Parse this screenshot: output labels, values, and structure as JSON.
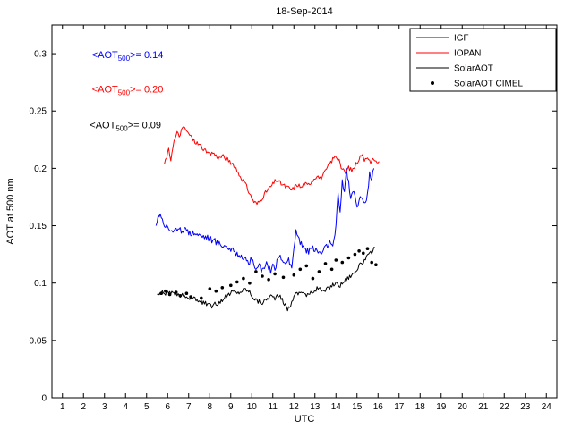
{
  "figure": {
    "title": "18-Sep-2014",
    "xlabel": "UTC",
    "ylabel": "AOT at 500 nm"
  },
  "chart_data": {
    "type": "line",
    "title": "18-Sep-2014",
    "xlabel": "UTC",
    "ylabel": "AOT at 500 nm",
    "xlim": [
      0.5,
      24.5
    ],
    "ylim": [
      0,
      0.325
    ],
    "grid": false,
    "xticks": [
      1,
      2,
      3,
      4,
      5,
      6,
      7,
      8,
      9,
      10,
      11,
      12,
      13,
      14,
      15,
      16,
      17,
      18,
      19,
      20,
      21,
      22,
      23,
      24
    ],
    "yticks": [
      {
        "v": 0,
        "label": "0"
      },
      {
        "v": 0.05,
        "label": "0.05"
      },
      {
        "v": 0.1,
        "label": "0.1"
      },
      {
        "v": 0.15,
        "label": "0.15"
      },
      {
        "v": 0.2,
        "label": "0.2"
      },
      {
        "v": 0.25,
        "label": "0.25"
      },
      {
        "v": 0.3,
        "label": "0.3"
      }
    ],
    "legend": {
      "position": "top-right-inside",
      "entries": [
        {
          "id": "igf",
          "label": "IGF",
          "color": "#0000ff",
          "marker": "line"
        },
        {
          "id": "iopan",
          "label": "IOPAN",
          "color": "#ff0000",
          "marker": "line"
        },
        {
          "id": "solaraot",
          "label": "SolarAOT",
          "color": "#000000",
          "marker": "line"
        },
        {
          "id": "solaraot-cimel",
          "label": "SolarAOT CIMEL",
          "color": "#000000",
          "marker": "dot"
        }
      ]
    },
    "annotations": [
      {
        "id": "igf-mean",
        "x": 2.4,
        "y": 0.296,
        "color": "#0000ff",
        "pre": "<AOT",
        "sub": "500",
        "post": ">= 0.14"
      },
      {
        "id": "iopan-mean",
        "x": 2.4,
        "y": 0.266,
        "color": "#ff0000",
        "pre": "<AOT",
        "sub": "500",
        "post": ">= 0.20"
      },
      {
        "id": "solaraot-mean",
        "x": 2.3,
        "y": 0.235,
        "color": "#000000",
        "pre": "<AOT",
        "sub": "500",
        "post": ">= 0.09"
      }
    ],
    "series": [
      {
        "id": "igf",
        "name": "IGF",
        "color": "#0000ff",
        "style": "line",
        "jitter": 0.003,
        "seed": 7,
        "points": [
          [
            5.45,
            0.15
          ],
          [
            5.55,
            0.158
          ],
          [
            5.65,
            0.162
          ],
          [
            5.75,
            0.155
          ],
          [
            5.9,
            0.15
          ],
          [
            6.1,
            0.147
          ],
          [
            6.3,
            0.146
          ],
          [
            6.5,
            0.145
          ],
          [
            6.7,
            0.146
          ],
          [
            6.9,
            0.145
          ],
          [
            7.1,
            0.144
          ],
          [
            7.3,
            0.144
          ],
          [
            7.5,
            0.142
          ],
          [
            7.7,
            0.141
          ],
          [
            7.9,
            0.14
          ],
          [
            8.1,
            0.138
          ],
          [
            8.3,
            0.136
          ],
          [
            8.5,
            0.134
          ],
          [
            8.7,
            0.133
          ],
          [
            8.9,
            0.131
          ],
          [
            9.1,
            0.128
          ],
          [
            9.3,
            0.126
          ],
          [
            9.5,
            0.124
          ],
          [
            9.7,
            0.12
          ],
          [
            9.9,
            0.118
          ],
          [
            10.0,
            0.122
          ],
          [
            10.1,
            0.113
          ],
          [
            10.3,
            0.116
          ],
          [
            10.5,
            0.11
          ],
          [
            10.7,
            0.116
          ],
          [
            10.9,
            0.11
          ],
          [
            11.0,
            0.118
          ],
          [
            11.1,
            0.112
          ],
          [
            11.3,
            0.124
          ],
          [
            11.5,
            0.116
          ],
          [
            11.7,
            0.121
          ],
          [
            11.9,
            0.113
          ],
          [
            12.0,
            0.13
          ],
          [
            12.1,
            0.146
          ],
          [
            12.2,
            0.141
          ],
          [
            12.3,
            0.136
          ],
          [
            12.5,
            0.131
          ],
          [
            12.7,
            0.127
          ],
          [
            12.9,
            0.131
          ],
          [
            13.1,
            0.128
          ],
          [
            13.3,
            0.126
          ],
          [
            13.5,
            0.131
          ],
          [
            13.7,
            0.136
          ],
          [
            13.85,
            0.13
          ],
          [
            14.0,
            0.15
          ],
          [
            14.1,
            0.176
          ],
          [
            14.2,
            0.162
          ],
          [
            14.3,
            0.19
          ],
          [
            14.4,
            0.18
          ],
          [
            14.5,
            0.198
          ],
          [
            14.6,
            0.188
          ],
          [
            14.7,
            0.172
          ],
          [
            14.8,
            0.182
          ],
          [
            14.9,
            0.176
          ],
          [
            15.0,
            0.168
          ],
          [
            15.1,
            0.172
          ],
          [
            15.25,
            0.176
          ],
          [
            15.4,
            0.17
          ],
          [
            15.5,
            0.178
          ],
          [
            15.6,
            0.196
          ],
          [
            15.7,
            0.19
          ],
          [
            15.8,
            0.2
          ]
        ]
      },
      {
        "id": "iopan",
        "name": "IOPAN",
        "color": "#ff0000",
        "style": "line",
        "jitter": 0.002,
        "seed": 13,
        "points": [
          [
            5.85,
            0.204
          ],
          [
            5.95,
            0.21
          ],
          [
            6.05,
            0.216
          ],
          [
            6.15,
            0.208
          ],
          [
            6.25,
            0.22
          ],
          [
            6.35,
            0.226
          ],
          [
            6.45,
            0.231
          ],
          [
            6.55,
            0.228
          ],
          [
            6.65,
            0.233
          ],
          [
            6.8,
            0.236
          ],
          [
            6.95,
            0.231
          ],
          [
            7.1,
            0.228
          ],
          [
            7.25,
            0.224
          ],
          [
            7.4,
            0.222
          ],
          [
            7.55,
            0.22
          ],
          [
            7.7,
            0.217
          ],
          [
            7.85,
            0.214
          ],
          [
            8.0,
            0.212
          ],
          [
            8.15,
            0.214
          ],
          [
            8.3,
            0.211
          ],
          [
            8.45,
            0.209
          ],
          [
            8.6,
            0.211
          ],
          [
            8.75,
            0.209
          ],
          [
            8.9,
            0.207
          ],
          [
            9.05,
            0.204
          ],
          [
            9.2,
            0.2
          ],
          [
            9.35,
            0.196
          ],
          [
            9.5,
            0.192
          ],
          [
            9.65,
            0.188
          ],
          [
            9.8,
            0.182
          ],
          [
            9.95,
            0.176
          ],
          [
            10.1,
            0.171
          ],
          [
            10.25,
            0.169
          ],
          [
            10.4,
            0.172
          ],
          [
            10.55,
            0.176
          ],
          [
            10.7,
            0.18
          ],
          [
            10.85,
            0.183
          ],
          [
            11.0,
            0.186
          ],
          [
            11.15,
            0.19
          ],
          [
            11.3,
            0.188
          ],
          [
            11.45,
            0.186
          ],
          [
            11.6,
            0.184
          ],
          [
            11.75,
            0.183
          ],
          [
            11.9,
            0.181
          ],
          [
            12.05,
            0.184
          ],
          [
            12.2,
            0.186
          ],
          [
            12.35,
            0.183
          ],
          [
            12.5,
            0.187
          ],
          [
            12.65,
            0.185
          ],
          [
            12.8,
            0.188
          ],
          [
            12.95,
            0.191
          ],
          [
            13.1,
            0.194
          ],
          [
            13.25,
            0.191
          ],
          [
            13.4,
            0.194
          ],
          [
            13.55,
            0.199
          ],
          [
            13.7,
            0.204
          ],
          [
            13.85,
            0.208
          ],
          [
            14.0,
            0.211
          ],
          [
            14.15,
            0.206
          ],
          [
            14.3,
            0.199
          ],
          [
            14.45,
            0.196
          ],
          [
            14.6,
            0.201
          ],
          [
            14.75,
            0.198
          ],
          [
            14.9,
            0.202
          ],
          [
            15.05,
            0.207
          ],
          [
            15.2,
            0.212
          ],
          [
            15.35,
            0.208
          ],
          [
            15.5,
            0.211
          ],
          [
            15.65,
            0.204
          ],
          [
            15.8,
            0.209
          ],
          [
            15.95,
            0.203
          ],
          [
            16.05,
            0.206
          ]
        ]
      },
      {
        "id": "solaraot",
        "name": "SolarAOT",
        "color": "#000000",
        "style": "line",
        "jitter": 0.002,
        "seed": 29,
        "points": [
          [
            5.5,
            0.09
          ],
          [
            5.7,
            0.092
          ],
          [
            5.9,
            0.091
          ],
          [
            6.1,
            0.092
          ],
          [
            6.3,
            0.09
          ],
          [
            6.5,
            0.089
          ],
          [
            6.7,
            0.09
          ],
          [
            6.9,
            0.088
          ],
          [
            7.1,
            0.087
          ],
          [
            7.3,
            0.086
          ],
          [
            7.5,
            0.084
          ],
          [
            7.7,
            0.083
          ],
          [
            7.9,
            0.081
          ],
          [
            8.1,
            0.08
          ],
          [
            8.3,
            0.082
          ],
          [
            8.5,
            0.084
          ],
          [
            8.7,
            0.087
          ],
          [
            8.9,
            0.09
          ],
          [
            9.1,
            0.093
          ],
          [
            9.3,
            0.091
          ],
          [
            9.5,
            0.093
          ],
          [
            9.7,
            0.095
          ],
          [
            9.9,
            0.092
          ],
          [
            10.1,
            0.087
          ],
          [
            10.3,
            0.084
          ],
          [
            10.5,
            0.083
          ],
          [
            10.7,
            0.086
          ],
          [
            10.9,
            0.089
          ],
          [
            11.1,
            0.087
          ],
          [
            11.3,
            0.089
          ],
          [
            11.5,
            0.084
          ],
          [
            11.7,
            0.077
          ],
          [
            11.9,
            0.083
          ],
          [
            12.0,
            0.09
          ],
          [
            12.2,
            0.091
          ],
          [
            12.4,
            0.093
          ],
          [
            12.6,
            0.089
          ],
          [
            12.8,
            0.091
          ],
          [
            13.0,
            0.094
          ],
          [
            13.2,
            0.096
          ],
          [
            13.4,
            0.092
          ],
          [
            13.6,
            0.095
          ],
          [
            13.8,
            0.098
          ],
          [
            14.0,
            0.1
          ],
          [
            14.2,
            0.098
          ],
          [
            14.4,
            0.102
          ],
          [
            14.6,
            0.105
          ],
          [
            14.8,
            0.108
          ],
          [
            15.0,
            0.112
          ],
          [
            15.2,
            0.117
          ],
          [
            15.4,
            0.121
          ],
          [
            15.6,
            0.125
          ],
          [
            15.75,
            0.128
          ],
          [
            15.85,
            0.131
          ]
        ]
      },
      {
        "id": "solaraot-cimel",
        "name": "SolarAOT CIMEL",
        "color": "#000000",
        "style": "scatter",
        "marker": "dot",
        "points": [
          [
            5.7,
            0.091
          ],
          [
            5.9,
            0.093
          ],
          [
            6.1,
            0.09
          ],
          [
            6.4,
            0.092
          ],
          [
            6.6,
            0.089
          ],
          [
            6.9,
            0.091
          ],
          [
            7.1,
            0.088
          ],
          [
            7.6,
            0.087
          ],
          [
            8.0,
            0.095
          ],
          [
            8.3,
            0.093
          ],
          [
            8.6,
            0.096
          ],
          [
            9.0,
            0.098
          ],
          [
            9.3,
            0.101
          ],
          [
            9.6,
            0.104
          ],
          [
            9.9,
            0.1
          ],
          [
            10.2,
            0.11
          ],
          [
            10.5,
            0.106
          ],
          [
            10.8,
            0.103
          ],
          [
            11.1,
            0.108
          ],
          [
            11.5,
            0.105
          ],
          [
            12.0,
            0.107
          ],
          [
            12.3,
            0.112
          ],
          [
            12.6,
            0.115
          ],
          [
            12.9,
            0.104
          ],
          [
            13.2,
            0.11
          ],
          [
            13.5,
            0.117
          ],
          [
            13.8,
            0.112
          ],
          [
            14.0,
            0.12
          ],
          [
            14.3,
            0.118
          ],
          [
            14.6,
            0.122
          ],
          [
            14.9,
            0.125
          ],
          [
            15.1,
            0.128
          ],
          [
            15.3,
            0.126
          ],
          [
            15.5,
            0.13
          ],
          [
            15.7,
            0.118
          ],
          [
            15.9,
            0.116
          ]
        ]
      }
    ]
  }
}
